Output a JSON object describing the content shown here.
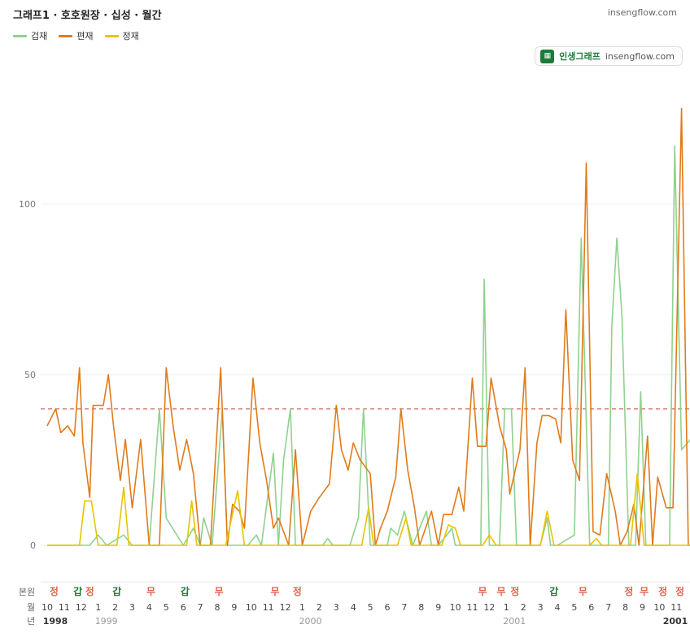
{
  "header": {
    "title": "그래프1 · 호호원장 · 십성 · 월간",
    "site": "insengflow.com"
  },
  "badge": {
    "logo_icon": "chart-icon",
    "name": "인생그래프",
    "url": "insengflow.com"
  },
  "colors": {
    "gap": "#8fd18f",
    "pyeon": "#e07b1a",
    "jeong": "#e8c400",
    "ref": "#c0392b",
    "bonwon_red": "#e0654f",
    "bonwon_green": "#1e7a3a"
  },
  "chart_data": {
    "type": "line",
    "legend_position": "top-left",
    "reference_line": 40,
    "y_ticks": [
      "0",
      "50",
      "100"
    ],
    "ylim": [
      -4,
      128
    ],
    "grid": true,
    "x_months": [
      "10",
      "11",
      "12",
      "1",
      "2",
      "3",
      "4",
      "5",
      "6",
      "7",
      "8",
      "9",
      "10",
      "11",
      "12",
      "1",
      "2",
      "3",
      "4",
      "5",
      "6",
      "7",
      "8",
      "9",
      "10",
      "11",
      "12",
      "1",
      "2",
      "3",
      "4",
      "5",
      "6",
      "7",
      "8",
      "9",
      "10",
      "11"
    ],
    "year_labels": [
      {
        "label": "1998",
        "month_index": 0,
        "bold": true
      },
      {
        "label": "1999",
        "month_index": 3,
        "bold": false
      },
      {
        "label": "2000",
        "month_index": 15,
        "bold": false
      },
      {
        "label": "2001",
        "month_index": 27,
        "bold": false
      },
      {
        "label": "2001",
        "month_index": 37,
        "bold": true
      }
    ],
    "row_labels": {
      "bonwon": "본원",
      "month": "월",
      "year": "년"
    },
    "bonwon_marks": [
      {
        "x": 0.4,
        "label": "정",
        "color": "red"
      },
      {
        "x": 1.8,
        "label": "갑",
        "color": "green"
      },
      {
        "x": 2.5,
        "label": "정",
        "color": "red"
      },
      {
        "x": 4.1,
        "label": "갑",
        "color": "green"
      },
      {
        "x": 6.1,
        "label": "무",
        "color": "red"
      },
      {
        "x": 8.1,
        "label": "갑",
        "color": "green"
      },
      {
        "x": 10.1,
        "label": "무",
        "color": "red"
      },
      {
        "x": 13.4,
        "label": "무",
        "color": "red"
      },
      {
        "x": 14.7,
        "label": "정",
        "color": "red"
      },
      {
        "x": 25.6,
        "label": "무",
        "color": "red"
      },
      {
        "x": 26.7,
        "label": "무",
        "color": "red"
      },
      {
        "x": 27.5,
        "label": "정",
        "color": "red"
      },
      {
        "x": 29.8,
        "label": "갑",
        "color": "green"
      },
      {
        "x": 31.5,
        "label": "무",
        "color": "red"
      },
      {
        "x": 34.2,
        "label": "정",
        "color": "red"
      },
      {
        "x": 35.1,
        "label": "무",
        "color": "red"
      },
      {
        "x": 36.2,
        "label": "정",
        "color": "red"
      },
      {
        "x": 37.2,
        "label": "정",
        "color": "red"
      }
    ],
    "series": [
      {
        "name": "겁재",
        "key": "gap",
        "points": [
          [
            0,
            0
          ],
          [
            1.5,
            0
          ],
          [
            2.5,
            0
          ],
          [
            3,
            3
          ],
          [
            3.5,
            0
          ],
          [
            4.5,
            3
          ],
          [
            5,
            0
          ],
          [
            6,
            0
          ],
          [
            6.6,
            40
          ],
          [
            7,
            8
          ],
          [
            8,
            0
          ],
          [
            8.6,
            5
          ],
          [
            9,
            0
          ],
          [
            9.2,
            8
          ],
          [
            9.7,
            0
          ],
          [
            10.3,
            40
          ],
          [
            10.6,
            0
          ],
          [
            11.8,
            0
          ],
          [
            12.3,
            3
          ],
          [
            12.6,
            0
          ],
          [
            13.3,
            27
          ],
          [
            13.6,
            0
          ],
          [
            13.9,
            25
          ],
          [
            14.3,
            40
          ],
          [
            14.6,
            0
          ],
          [
            16.2,
            0
          ],
          [
            16.5,
            2
          ],
          [
            16.8,
            0
          ],
          [
            17.8,
            0
          ],
          [
            18.3,
            8
          ],
          [
            18.6,
            40
          ],
          [
            19,
            0
          ],
          [
            20,
            0
          ],
          [
            20.2,
            5
          ],
          [
            20.6,
            3
          ],
          [
            21,
            10
          ],
          [
            21.5,
            0
          ],
          [
            22.3,
            10
          ],
          [
            22.6,
            0
          ],
          [
            23,
            0
          ],
          [
            23.5,
            3
          ],
          [
            23.8,
            5
          ],
          [
            24,
            0
          ],
          [
            25.5,
            0
          ],
          [
            25.7,
            78
          ],
          [
            26,
            0
          ],
          [
            26.6,
            0
          ],
          [
            26.9,
            40
          ],
          [
            27.3,
            40
          ],
          [
            27.6,
            0
          ],
          [
            29,
            0
          ],
          [
            29.4,
            8
          ],
          [
            29.6,
            0
          ],
          [
            30,
            0
          ],
          [
            31,
            3
          ],
          [
            31.4,
            90
          ],
          [
            31.9,
            0
          ],
          [
            32.5,
            0
          ],
          [
            33,
            0
          ],
          [
            33.2,
            64
          ],
          [
            33.5,
            90
          ],
          [
            33.8,
            67
          ],
          [
            34.2,
            0
          ],
          [
            34.6,
            0
          ],
          [
            34.9,
            45
          ],
          [
            35.2,
            0
          ],
          [
            35.7,
            0
          ],
          [
            36.6,
            0
          ],
          [
            36.9,
            117
          ],
          [
            37.3,
            28
          ],
          [
            38,
            32
          ]
        ]
      },
      {
        "name": "편재",
        "key": "pyeon",
        "points": [
          [
            0,
            35
          ],
          [
            0.5,
            40
          ],
          [
            0.8,
            33
          ],
          [
            1.2,
            35
          ],
          [
            1.6,
            32
          ],
          [
            1.9,
            52
          ],
          [
            2.1,
            30
          ],
          [
            2.5,
            14
          ],
          [
            2.7,
            41
          ],
          [
            3.3,
            41
          ],
          [
            3.6,
            50
          ],
          [
            3.9,
            35
          ],
          [
            4.3,
            19
          ],
          [
            4.6,
            31
          ],
          [
            5,
            11
          ],
          [
            5.5,
            31
          ],
          [
            6,
            0
          ],
          [
            6.6,
            0
          ],
          [
            7,
            52
          ],
          [
            7.4,
            35
          ],
          [
            7.8,
            22
          ],
          [
            8.2,
            31
          ],
          [
            8.6,
            21
          ],
          [
            9,
            0
          ],
          [
            9.6,
            0
          ],
          [
            10.2,
            52
          ],
          [
            10.6,
            0
          ],
          [
            10.9,
            12
          ],
          [
            11.3,
            10
          ],
          [
            11.6,
            5
          ],
          [
            12.1,
            49
          ],
          [
            12.5,
            30
          ],
          [
            12.9,
            19
          ],
          [
            13.3,
            5
          ],
          [
            13.6,
            8
          ],
          [
            14.2,
            0
          ],
          [
            14.6,
            28
          ],
          [
            15,
            0
          ],
          [
            15.5,
            10
          ],
          [
            16,
            14
          ],
          [
            16.6,
            18
          ],
          [
            17,
            41
          ],
          [
            17.3,
            28
          ],
          [
            17.7,
            22
          ],
          [
            18,
            30
          ],
          [
            18.4,
            25
          ],
          [
            19,
            21
          ],
          [
            19.3,
            0
          ],
          [
            19.6,
            5
          ],
          [
            20,
            10
          ],
          [
            20.5,
            20
          ],
          [
            20.8,
            40
          ],
          [
            21.2,
            22
          ],
          [
            21.6,
            11
          ],
          [
            21.9,
            0
          ],
          [
            22.6,
            10
          ],
          [
            23,
            0
          ],
          [
            23.3,
            9
          ],
          [
            23.8,
            9
          ],
          [
            24.2,
            17
          ],
          [
            24.5,
            10
          ],
          [
            25,
            49
          ],
          [
            25.3,
            29
          ],
          [
            25.8,
            29
          ],
          [
            26.1,
            49
          ],
          [
            26.6,
            35
          ],
          [
            27,
            28
          ],
          [
            27.2,
            15
          ],
          [
            27.8,
            28
          ],
          [
            28.1,
            52
          ],
          [
            28.4,
            0
          ],
          [
            28.8,
            30
          ],
          [
            29.1,
            38
          ],
          [
            29.5,
            38
          ],
          [
            29.9,
            37
          ],
          [
            30.2,
            30
          ],
          [
            30.5,
            69
          ],
          [
            30.9,
            25
          ],
          [
            31.3,
            19
          ],
          [
            31.7,
            112
          ],
          [
            32.1,
            4
          ],
          [
            32.5,
            3
          ],
          [
            32.9,
            21
          ],
          [
            33.4,
            10
          ],
          [
            33.7,
            0
          ],
          [
            34.1,
            4
          ],
          [
            34.5,
            12
          ],
          [
            34.8,
            0
          ],
          [
            35.3,
            32
          ],
          [
            35.6,
            0
          ],
          [
            35.9,
            20
          ],
          [
            36.4,
            11
          ],
          [
            36.8,
            11
          ],
          [
            37.3,
            128
          ],
          [
            37.7,
            0
          ],
          [
            38.3,
            0
          ],
          [
            38.7,
            33
          ],
          [
            39.1,
            17
          ],
          [
            39.5,
            5
          ],
          [
            39.8,
            0
          ],
          [
            40.1,
            58
          ],
          [
            40.6,
            0
          ]
        ]
      },
      {
        "name": "정재",
        "key": "jeong",
        "points": [
          [
            0,
            0
          ],
          [
            1.9,
            0
          ],
          [
            2.2,
            13
          ],
          [
            2.6,
            13
          ],
          [
            3,
            0
          ],
          [
            4.1,
            0
          ],
          [
            4.5,
            17
          ],
          [
            4.8,
            0
          ],
          [
            6.4,
            0
          ],
          [
            6.8,
            0
          ],
          [
            8.2,
            0
          ],
          [
            8.5,
            13
          ],
          [
            8.8,
            0
          ],
          [
            9.2,
            0
          ],
          [
            10.5,
            0
          ],
          [
            11.2,
            16
          ],
          [
            11.6,
            0
          ],
          [
            13.5,
            0
          ],
          [
            14.2,
            0
          ],
          [
            18.5,
            0
          ],
          [
            18.9,
            11
          ],
          [
            19.2,
            0
          ],
          [
            20.6,
            0
          ],
          [
            21.1,
            8
          ],
          [
            21.4,
            0
          ],
          [
            23.2,
            0
          ],
          [
            23.6,
            6
          ],
          [
            24,
            5
          ],
          [
            24.3,
            0
          ],
          [
            25.6,
            0
          ],
          [
            26,
            3
          ],
          [
            26.4,
            0
          ],
          [
            28.6,
            0
          ],
          [
            29,
            0
          ],
          [
            29.4,
            10
          ],
          [
            29.8,
            0
          ],
          [
            31.5,
            0
          ],
          [
            31.9,
            0
          ],
          [
            32.3,
            2
          ],
          [
            32.6,
            0
          ],
          [
            33.6,
            0
          ],
          [
            34.3,
            0
          ],
          [
            34.7,
            21
          ],
          [
            35.1,
            0
          ],
          [
            36.6,
            0
          ],
          [
            37.5,
            0
          ],
          [
            38.7,
            0
          ],
          [
            40.6,
            0
          ]
        ]
      }
    ]
  }
}
